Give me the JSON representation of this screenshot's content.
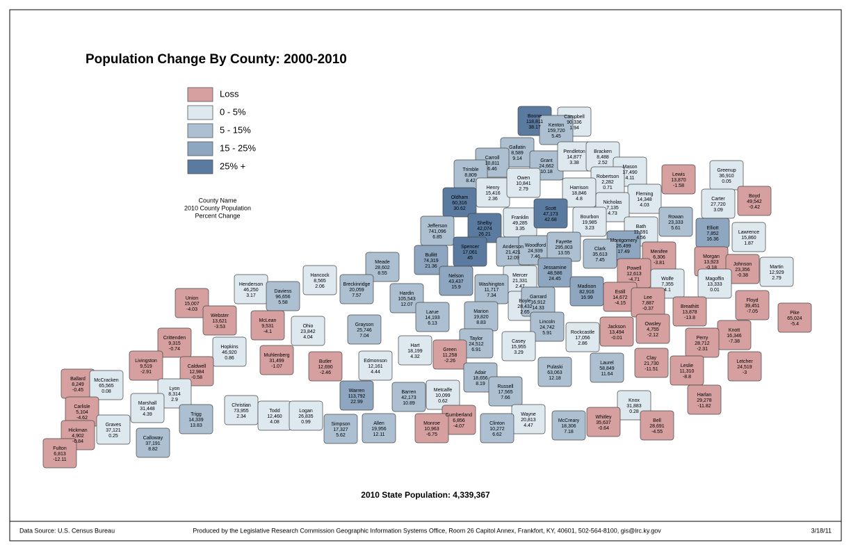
{
  "title": "Population Change By County: 2000-2010",
  "legend": [
    {
      "label": "Loss",
      "range": [
        null,
        0
      ],
      "color": "#d6a0a0"
    },
    {
      "label": "0 - 5%",
      "range": [
        0,
        5
      ],
      "color": "#dde8ef"
    },
    {
      "label": "5 - 15%",
      "range": [
        5,
        15
      ],
      "color": "#adc0d2"
    },
    {
      "label": "15 - 25%",
      "range": [
        15,
        25
      ],
      "color": "#8ea6c0"
    },
    {
      "label": "25% +",
      "range": [
        25,
        null
      ],
      "color": "#5a7aa0"
    }
  ],
  "key": [
    "County Name",
    "2010 County Population",
    "Percent Change"
  ],
  "state_population": "2010 State Population: 4,339,367",
  "footer": {
    "source": "Data Source: U.S. Census Bureau",
    "producer": "Produced by the Legislative Research Commission Geographic Information Systems Office, Room 26 Capitol Annex, Frankfort, KY, 40601, 502-564-8100, gis@lrc.ky.gov",
    "date": "3/18/11"
  },
  "counties": [
    {
      "name": "Boone",
      "population": "118,811",
      "change": 38.17
    },
    {
      "name": "Campbell",
      "population": "90,336",
      "change": 1.94
    },
    {
      "name": "Kenton",
      "population": "159,720",
      "change": 5.45
    },
    {
      "name": "Gallatin",
      "population": "8,589",
      "change": 9.14
    },
    {
      "name": "Carroll",
      "population": "10,811",
      "change": 6.46
    },
    {
      "name": "Trimble",
      "population": "8,809",
      "change": 8.42
    },
    {
      "name": "Grant",
      "population": "24,662",
      "change": 10.18
    },
    {
      "name": "Pendleton",
      "population": "14,877",
      "change": 3.38
    },
    {
      "name": "Bracken",
      "population": "8,488",
      "change": 2.52
    },
    {
      "name": "Mason",
      "population": "17,490",
      "change": 4.11
    },
    {
      "name": "Robertson",
      "population": "2,282",
      "change": 0.71
    },
    {
      "name": "Lewis",
      "population": "13,870",
      "change": -1.58
    },
    {
      "name": "Greenup",
      "population": "36,910",
      "change": 0.05
    },
    {
      "name": "Boyd",
      "population": "49,542",
      "change": -0.42
    },
    {
      "name": "Carter",
      "population": "27,720",
      "change": 3.09
    },
    {
      "name": "Henry",
      "population": "15,416",
      "change": 2.36
    },
    {
      "name": "Owen",
      "population": "10,841",
      "change": 2.79
    },
    {
      "name": "Oldham",
      "population": "60,316",
      "change": 30.62
    },
    {
      "name": "Harrison",
      "population": "18,846",
      "change": 4.8
    },
    {
      "name": "Fleming",
      "population": "14,348",
      "change": 4.03
    },
    {
      "name": "Nicholas",
      "population": "7,135",
      "change": 4.73
    },
    {
      "name": "Shelby",
      "population": "42,074",
      "change": 26.21
    },
    {
      "name": "Franklin",
      "population": "49,285",
      "change": 3.35
    },
    {
      "name": "Scott",
      "population": "47,173",
      "change": 42.68
    },
    {
      "name": "Bourbon",
      "population": "19,985",
      "change": 3.23
    },
    {
      "name": "Bath",
      "population": "11,591",
      "change": 4.56
    },
    {
      "name": "Rowan",
      "population": "23,333",
      "change": 5.61
    },
    {
      "name": "Elliott",
      "population": "7,852",
      "change": 16.36
    },
    {
      "name": "Lawrence",
      "population": "15,860",
      "change": 1.87
    },
    {
      "name": "Jefferson",
      "population": "741,096",
      "change": 6.85
    },
    {
      "name": "Spencer",
      "population": "17,061",
      "change": 45
    },
    {
      "name": "Anderson",
      "population": "21,421",
      "change": 12.09
    },
    {
      "name": "Woodford",
      "population": "24,939",
      "change": 7.46
    },
    {
      "name": "Fayette",
      "population": "295,803",
      "change": 13.55
    },
    {
      "name": "Montgomery",
      "population": "26,499",
      "change": 17.49
    },
    {
      "name": "Menifee",
      "population": "6,306",
      "change": -3.81
    },
    {
      "name": "Morgan",
      "population": "13,923",
      "change": -0.18
    },
    {
      "name": "Johnson",
      "population": "23,356",
      "change": -0.38
    },
    {
      "name": "Martin",
      "population": "12,929",
      "change": 2.79
    },
    {
      "name": "Clark",
      "population": "35,613",
      "change": 7.45
    },
    {
      "name": "Meade",
      "population": "28,602",
      "change": 8.55
    },
    {
      "name": "Bullitt",
      "population": "74,319",
      "change": 21.36
    },
    {
      "name": "Jessamine",
      "population": "48,586",
      "change": 24.45
    },
    {
      "name": "Powell",
      "population": "12,613",
      "change": -4.71
    },
    {
      "name": "Wolfe",
      "population": "7,355",
      "change": 4.1
    },
    {
      "name": "Magoffin",
      "population": "13,333",
      "change": 0.01
    },
    {
      "name": "Hancock",
      "population": "8,565",
      "change": 2.06
    },
    {
      "name": "Henderson",
      "population": "46,250",
      "change": 3.17
    },
    {
      "name": "Daviess",
      "population": "96,656",
      "change": 5.58
    },
    {
      "name": "Breckinridge",
      "population": "20,059",
      "change": 7.57
    },
    {
      "name": "Nelson",
      "population": "43,437",
      "change": 15.9
    },
    {
      "name": "Mercer",
      "population": "21,331",
      "change": 2.47
    },
    {
      "name": "Washington",
      "population": "11,717",
      "change": 7.34
    },
    {
      "name": "Madison",
      "population": "82,916",
      "change": 16.99
    },
    {
      "name": "Estill",
      "population": "14,672",
      "change": -4.15
    },
    {
      "name": "Lee",
      "population": "7,887",
      "change": -0.37
    },
    {
      "name": "Floyd",
      "population": "39,451",
      "change": -7.05
    },
    {
      "name": "Pike",
      "population": "65,024",
      "change": -5.4
    },
    {
      "name": "Union",
      "population": "15,007",
      "change": -4.03
    },
    {
      "name": "Webster",
      "population": "13,621",
      "change": -3.53
    },
    {
      "name": "McLean",
      "population": "9,531",
      "change": -4.1
    },
    {
      "name": "Ohio",
      "population": "23,842",
      "change": 4.04
    },
    {
      "name": "Hardin",
      "population": "105,543",
      "change": 12.07
    },
    {
      "name": "Larue",
      "population": "14,193",
      "change": 6.13
    },
    {
      "name": "Boyle",
      "population": "28,432",
      "change": 2.65
    },
    {
      "name": "Garrard",
      "population": "16,912",
      "change": 14.33
    },
    {
      "name": "Marion",
      "population": "19,820",
      "change": 8.83
    },
    {
      "name": "Breathitt",
      "population": "13,878",
      "change": -13.8
    },
    {
      "name": "Owsley",
      "population": "4,755",
      "change": -2.12
    },
    {
      "name": "Jackson",
      "population": "13,494",
      "change": -0.01
    },
    {
      "name": "Lincoln",
      "population": "24,742",
      "change": 5.91
    },
    {
      "name": "Rockcastle",
      "population": "17,056",
      "change": 2.86
    },
    {
      "name": "Crittenden",
      "population": "9,315",
      "change": -0.74
    },
    {
      "name": "Hopkins",
      "population": "46,920",
      "change": 0.86
    },
    {
      "name": "Grayson",
      "population": "25,746",
      "change": 7.04
    },
    {
      "name": "Taylor",
      "population": "24,512",
      "change": 6.91
    },
    {
      "name": "Knott",
      "population": "16,346",
      "change": -7.38
    },
    {
      "name": "Perry",
      "population": "28,712",
      "change": -2.31
    },
    {
      "name": "Livingston",
      "population": "9,519",
      "change": -2.91
    },
    {
      "name": "Caldwell",
      "population": "12,984",
      "change": -0.58
    },
    {
      "name": "Muhlenberg",
      "population": "31,499",
      "change": -1.07
    },
    {
      "name": "Butler",
      "population": "12,690",
      "change": -2.46
    },
    {
      "name": "Hart",
      "population": "18,199",
      "change": 4.32
    },
    {
      "name": "Green",
      "population": "11,258",
      "change": -2.26
    },
    {
      "name": "Casey",
      "population": "15,955",
      "change": 3.29
    },
    {
      "name": "Clay",
      "population": "21,730",
      "change": -11.51
    },
    {
      "name": "Leslie",
      "population": "11,310",
      "change": -8.8
    },
    {
      "name": "Letcher",
      "population": "24,519",
      "change": -3
    },
    {
      "name": "Edmonson",
      "population": "12,161",
      "change": 4.44
    },
    {
      "name": "Laurel",
      "population": "58,849",
      "change": 11.64
    },
    {
      "name": "Pulaski",
      "population": "63,063",
      "change": 12.18
    },
    {
      "name": "Adair",
      "population": "18,656",
      "change": 8.19
    },
    {
      "name": "Ballard",
      "population": "8,249",
      "change": -0.45
    },
    {
      "name": "McCracken",
      "population": "65,565",
      "change": 0.08
    },
    {
      "name": "Lyon",
      "population": "8,314",
      "change": 2.9
    },
    {
      "name": "Metcalfe",
      "population": "10,099",
      "change": 0.62
    },
    {
      "name": "Russell",
      "population": "17,565",
      "change": 7.66
    },
    {
      "name": "Warren",
      "population": "113,792",
      "change": 22.99
    },
    {
      "name": "Barren",
      "population": "42,173",
      "change": 10.89
    },
    {
      "name": "Harlan",
      "population": "29,278",
      "change": -11.82
    },
    {
      "name": "Carlisle",
      "population": "5,104",
      "change": -4.62
    },
    {
      "name": "Marshall",
      "population": "31,448",
      "change": 4.39
    },
    {
      "name": "Christian",
      "population": "73,955",
      "change": 2.34
    },
    {
      "name": "Todd",
      "population": "12,460",
      "change": 4.08
    },
    {
      "name": "Logan",
      "population": "26,835",
      "change": 0.99
    },
    {
      "name": "Knox",
      "population": "31,883",
      "change": 0.28
    },
    {
      "name": "Graves",
      "population": "37,121",
      "change": 0.25
    },
    {
      "name": "Trigg",
      "population": "14,339",
      "change": 13.83
    },
    {
      "name": "Cumberland",
      "population": "6,856",
      "change": -4.07
    },
    {
      "name": "Wayne",
      "population": "20,813",
      "change": 4.47
    },
    {
      "name": "McCreary",
      "population": "18,306",
      "change": 7.18
    },
    {
      "name": "Whitley",
      "population": "35,637",
      "change": -0.64
    },
    {
      "name": "Bell",
      "population": "28,691",
      "change": -4.55
    },
    {
      "name": "Hickman",
      "population": "4,902",
      "change": -6.84
    },
    {
      "name": "Simpson",
      "population": "17,327",
      "change": 5.62
    },
    {
      "name": "Allen",
      "population": "19,956",
      "change": 12.11
    },
    {
      "name": "Monroe",
      "population": "10,963",
      "change": -6.75
    },
    {
      "name": "Clinton",
      "population": "10,272",
      "change": 6.62
    },
    {
      "name": "Calloway",
      "population": "37,191",
      "change": 8.82
    },
    {
      "name": "Fulton",
      "population": "6,813",
      "change": -12.11
    }
  ]
}
